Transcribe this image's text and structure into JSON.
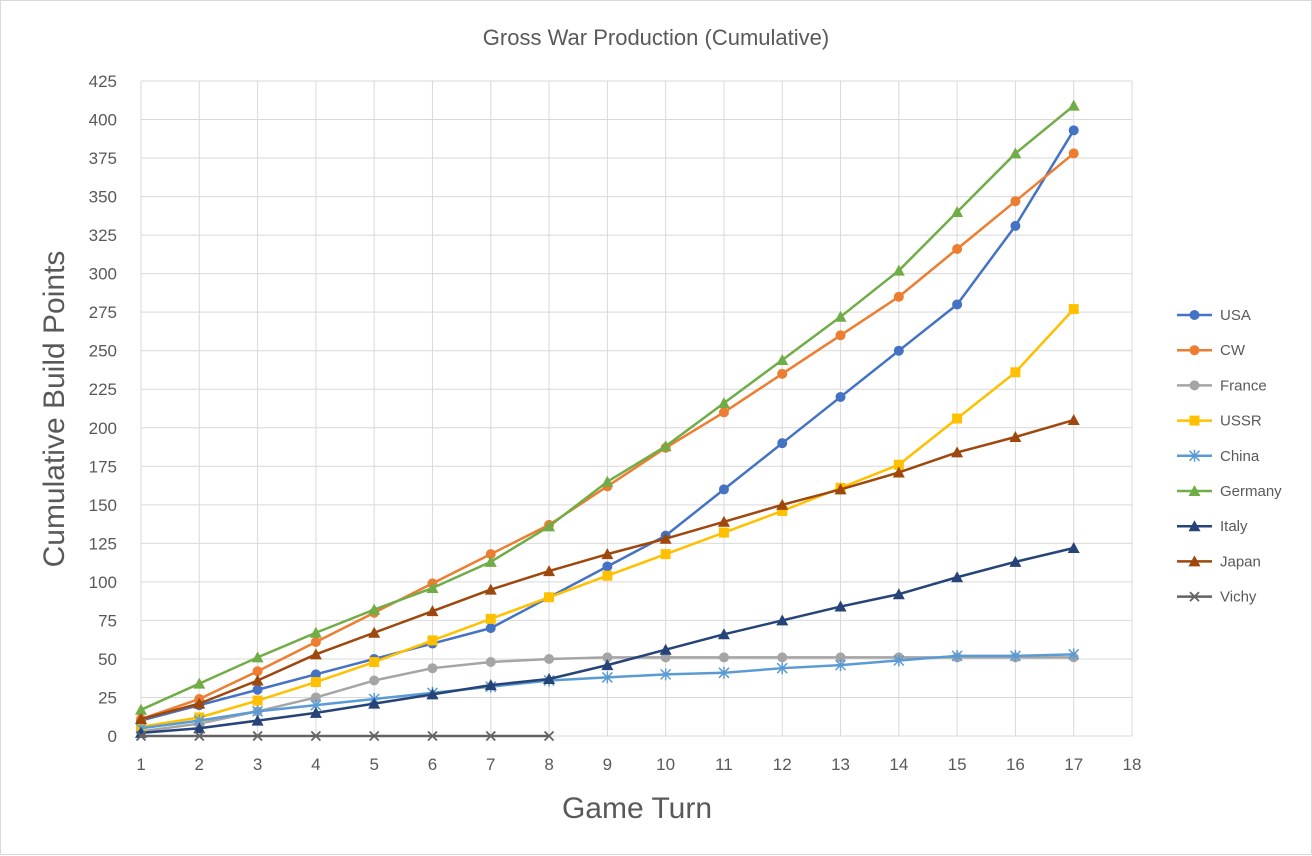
{
  "chart_data": {
    "type": "line",
    "title": "Gross War Production (Cumulative)",
    "xlabel": "Game Turn",
    "ylabel": "Cumulative Build Points",
    "xlim": [
      1,
      18
    ],
    "ylim": [
      0,
      425
    ],
    "xticks": [
      1,
      2,
      3,
      4,
      5,
      6,
      7,
      8,
      9,
      10,
      11,
      12,
      13,
      14,
      15,
      16,
      17,
      18
    ],
    "yticks": [
      0,
      25,
      50,
      75,
      100,
      125,
      150,
      175,
      200,
      225,
      250,
      275,
      300,
      325,
      350,
      375,
      400,
      425
    ],
    "grid": true,
    "legend_position": "right",
    "series": [
      {
        "name": "USA",
        "color": "#4472C4",
        "marker": "circle",
        "x": [
          1,
          2,
          3,
          4,
          5,
          6,
          7,
          8,
          9,
          10,
          11,
          12,
          13,
          14,
          15,
          16,
          17
        ],
        "values": [
          10,
          20,
          30,
          40,
          50,
          60,
          70,
          90,
          110,
          130,
          160,
          190,
          220,
          250,
          280,
          331,
          393
        ]
      },
      {
        "name": "CW",
        "color": "#ED7D31",
        "marker": "circle",
        "x": [
          1,
          2,
          3,
          4,
          5,
          6,
          7,
          8,
          9,
          10,
          11,
          12,
          13,
          14,
          15,
          16,
          17
        ],
        "values": [
          11,
          24,
          42,
          61,
          80,
          99,
          118,
          137,
          162,
          187,
          210,
          235,
          260,
          285,
          316,
          347,
          378
        ]
      },
      {
        "name": "France",
        "color": "#A5A5A5",
        "marker": "circle",
        "x": [
          1,
          2,
          3,
          4,
          5,
          6,
          7,
          8,
          9,
          10,
          11,
          12,
          13,
          14,
          15,
          16,
          17
        ],
        "values": [
          3,
          8,
          16,
          25,
          36,
          44,
          48,
          50,
          51,
          51,
          51,
          51,
          51,
          51,
          51,
          51,
          51
        ]
      },
      {
        "name": "USSR",
        "color": "#FFC000",
        "marker": "square",
        "x": [
          1,
          2,
          3,
          4,
          5,
          6,
          7,
          8,
          9,
          10,
          11,
          12,
          13,
          14,
          15,
          16,
          17
        ],
        "values": [
          6,
          12,
          23,
          35,
          48,
          62,
          76,
          90,
          104,
          118,
          132,
          146,
          161,
          176,
          206,
          236,
          277
        ]
      },
      {
        "name": "China",
        "color": "#5B9BD5",
        "marker": "asterisk",
        "x": [
          1,
          2,
          3,
          4,
          5,
          6,
          7,
          8,
          9,
          10,
          11,
          12,
          13,
          14,
          15,
          16,
          17
        ],
        "values": [
          5,
          10,
          16,
          20,
          24,
          28,
          32,
          36,
          38,
          40,
          41,
          44,
          46,
          49,
          52,
          52,
          53
        ]
      },
      {
        "name": "Germany",
        "color": "#70AD47",
        "marker": "triangle",
        "x": [
          1,
          2,
          3,
          4,
          5,
          6,
          7,
          8,
          9,
          10,
          11,
          12,
          13,
          14,
          15,
          16,
          17
        ],
        "values": [
          17,
          34,
          51,
          67,
          82,
          96,
          113,
          136,
          165,
          188,
          216,
          244,
          272,
          302,
          340,
          378,
          409
        ]
      },
      {
        "name": "Italy",
        "color": "#264478",
        "marker": "triangle",
        "x": [
          1,
          2,
          3,
          4,
          5,
          6,
          7,
          8,
          9,
          10,
          11,
          12,
          13,
          14,
          15,
          16,
          17
        ],
        "values": [
          2,
          5,
          10,
          15,
          21,
          27,
          33,
          37,
          46,
          56,
          66,
          75,
          84,
          92,
          103,
          113,
          122
        ]
      },
      {
        "name": "Japan",
        "color": "#9E480E",
        "marker": "triangle",
        "x": [
          1,
          2,
          3,
          4,
          5,
          6,
          7,
          8,
          9,
          10,
          11,
          12,
          13,
          14,
          15,
          16,
          17
        ],
        "values": [
          11,
          21,
          36,
          53,
          67,
          81,
          95,
          107,
          118,
          128,
          139,
          150,
          160,
          171,
          184,
          194,
          205
        ]
      },
      {
        "name": "Vichy",
        "color": "#636363",
        "marker": "x",
        "x": [
          1,
          2,
          3,
          4,
          5,
          6,
          7,
          8
        ],
        "values": [
          0,
          0,
          0,
          0,
          0,
          0,
          0,
          0
        ]
      }
    ]
  }
}
